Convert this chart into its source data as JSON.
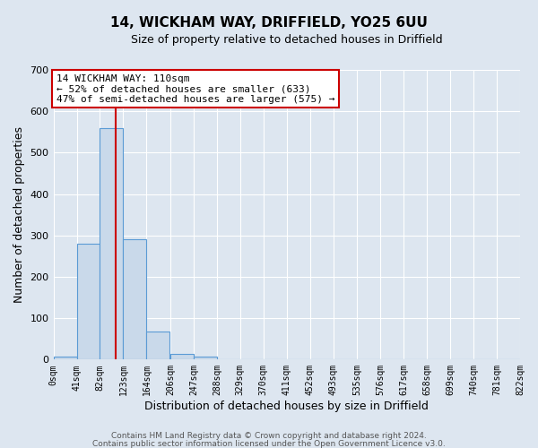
{
  "title1": "14, WICKHAM WAY, DRIFFIELD, YO25 6UU",
  "title2": "Size of property relative to detached houses in Driffield",
  "xlabel": "Distribution of detached houses by size in Driffield",
  "ylabel": "Number of detached properties",
  "bar_color": "#c9d9ea",
  "bar_edge_color": "#5b9bd5",
  "background_color": "#dde6f0",
  "grid_color": "#ffffff",
  "bin_edges": [
    0,
    41,
    82,
    123,
    164,
    206,
    247,
    288,
    329,
    370,
    411,
    452,
    493,
    535,
    576,
    617,
    658,
    699,
    740,
    781,
    822
  ],
  "bar_heights": [
    7,
    280,
    560,
    290,
    67,
    13,
    8,
    0,
    0,
    0,
    0,
    0,
    0,
    0,
    0,
    0,
    0,
    0,
    0,
    0
  ],
  "tick_labels": [
    "0sqm",
    "41sqm",
    "82sqm",
    "123sqm",
    "164sqm",
    "206sqm",
    "247sqm",
    "288sqm",
    "329sqm",
    "370sqm",
    "411sqm",
    "452sqm",
    "493sqm",
    "535sqm",
    "576sqm",
    "617sqm",
    "658sqm",
    "699sqm",
    "740sqm",
    "781sqm",
    "822sqm"
  ],
  "ylim": [
    0,
    700
  ],
  "yticks": [
    0,
    100,
    200,
    300,
    400,
    500,
    600,
    700
  ],
  "xlim": [
    0,
    822
  ],
  "red_line_x": 110,
  "annotation_text_line1": "14 WICKHAM WAY: 110sqm",
  "annotation_text_line2": "← 52% of detached houses are smaller (633)",
  "annotation_text_line3": "47% of semi-detached houses are larger (575) →",
  "footer1": "Contains HM Land Registry data © Crown copyright and database right 2024.",
  "footer2": "Contains public sector information licensed under the Open Government Licence v3.0.",
  "title1_fontsize": 11,
  "title2_fontsize": 9,
  "xlabel_fontsize": 9,
  "ylabel_fontsize": 9,
  "annotation_fontsize": 8,
  "footer_fontsize": 6.5
}
